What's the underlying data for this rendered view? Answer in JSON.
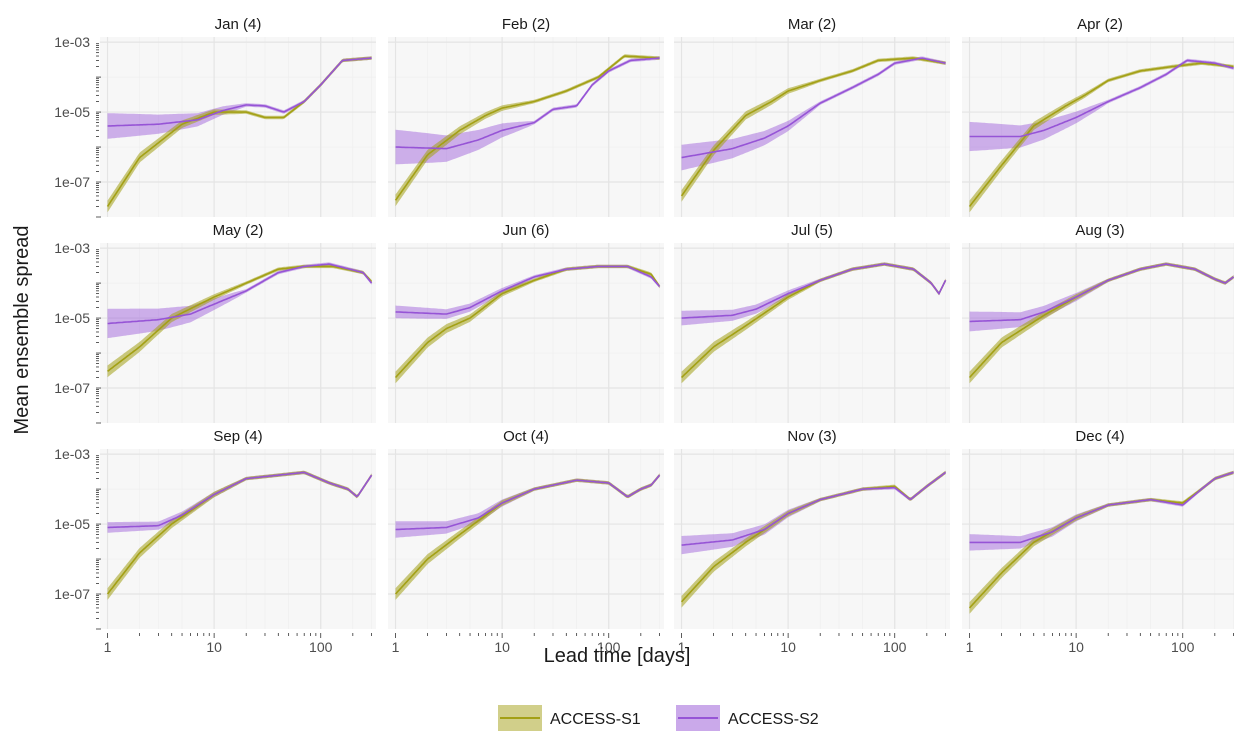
{
  "chart_data": {
    "type": "line",
    "ylabel": "Mean ensemble spread",
    "xlabel": "Lead time [days]",
    "x_scale": "log",
    "y_scale": "log",
    "xlim": [
      0.85,
      330
    ],
    "ylim": [
      1e-08,
      0.0014
    ],
    "x_ticks": [
      1,
      10,
      100
    ],
    "x_tick_labels": [
      "1",
      "10",
      "100"
    ],
    "y_ticks": [
      1e-07,
      1e-05,
      0.001
    ],
    "y_tick_labels": [
      "1e-07",
      "1e-05",
      "1e-03"
    ],
    "grid": true,
    "legend_position": "bottom",
    "colors": {
      "ACCESS-S1": "#a3a015",
      "ACCESS-S2": "#9654d6",
      "panel_bg": "#f7f7f7",
      "grid": "#e4e4e4"
    },
    "series_names": [
      "ACCESS-S1",
      "ACCESS-S2"
    ],
    "panels": [
      {
        "title": "Jan (4)",
        "s1": [
          [
            1,
            2e-08
          ],
          [
            2,
            5e-07
          ],
          [
            5,
            4.5e-06
          ],
          [
            10,
            1e-05
          ],
          [
            20,
            1e-05
          ],
          [
            30,
            7e-06
          ],
          [
            45,
            7e-06
          ],
          [
            70,
            2e-05
          ],
          [
            100,
            6e-05
          ],
          [
            160,
            0.0003
          ],
          [
            300,
            0.00035
          ]
        ],
        "s2": [
          [
            1,
            4e-06
          ],
          [
            3,
            4.5e-06
          ],
          [
            7,
            6e-06
          ],
          [
            12,
            1.1e-05
          ],
          [
            20,
            1.6e-05
          ],
          [
            30,
            1.5e-05
          ],
          [
            45,
            1e-05
          ],
          [
            70,
            2e-05
          ],
          [
            100,
            6e-05
          ],
          [
            160,
            0.0003
          ],
          [
            300,
            0.00035
          ]
        ],
        "s2_band": 2.2
      },
      {
        "title": "Feb (2)",
        "s1": [
          [
            1,
            3e-08
          ],
          [
            2,
            6e-07
          ],
          [
            4,
            3e-06
          ],
          [
            7,
            8e-06
          ],
          [
            10,
            1.3e-05
          ],
          [
            20,
            2e-05
          ],
          [
            40,
            4e-05
          ],
          [
            80,
            0.0001
          ],
          [
            140,
            0.0004
          ],
          [
            300,
            0.00035
          ]
        ],
        "s2": [
          [
            1,
            1e-06
          ],
          [
            3,
            9e-07
          ],
          [
            6,
            1.6e-06
          ],
          [
            10,
            3e-06
          ],
          [
            20,
            5e-06
          ],
          [
            30,
            1.2e-05
          ],
          [
            50,
            1.5e-05
          ],
          [
            70,
            6e-05
          ],
          [
            100,
            0.00015
          ],
          [
            160,
            0.0003
          ],
          [
            300,
            0.00035
          ]
        ],
        "s2_band": 3
      },
      {
        "title": "Mar (2)",
        "s1": [
          [
            1,
            4e-08
          ],
          [
            2,
            8e-07
          ],
          [
            4,
            8e-06
          ],
          [
            7,
            2e-05
          ],
          [
            10,
            4e-05
          ],
          [
            20,
            8e-05
          ],
          [
            40,
            0.00015
          ],
          [
            70,
            0.0003
          ],
          [
            150,
            0.00035
          ],
          [
            300,
            0.00025
          ]
        ],
        "s2": [
          [
            1,
            5e-07
          ],
          [
            3,
            9e-07
          ],
          [
            6,
            1.8e-06
          ],
          [
            10,
            4e-06
          ],
          [
            20,
            1.8e-05
          ],
          [
            40,
            5e-05
          ],
          [
            70,
            0.00012
          ],
          [
            100,
            0.00025
          ],
          [
            180,
            0.00035
          ],
          [
            300,
            0.00025
          ]
        ],
        "s2_band": 2.2
      },
      {
        "title": "Apr (2)",
        "s1": [
          [
            1,
            2e-08
          ],
          [
            2,
            3e-07
          ],
          [
            4,
            4e-06
          ],
          [
            8,
            1.5e-05
          ],
          [
            12,
            3e-05
          ],
          [
            20,
            8e-05
          ],
          [
            40,
            0.00015
          ],
          [
            80,
            0.0002
          ],
          [
            150,
            0.00025
          ],
          [
            300,
            0.0002
          ]
        ],
        "s2": [
          [
            1,
            2e-06
          ],
          [
            3,
            2e-06
          ],
          [
            5,
            3e-06
          ],
          [
            10,
            7e-06
          ],
          [
            20,
            2e-05
          ],
          [
            40,
            5e-05
          ],
          [
            70,
            0.00012
          ],
          [
            110,
            0.0003
          ],
          [
            200,
            0.00025
          ],
          [
            300,
            0.00018
          ]
        ],
        "s2_band": 2.5
      },
      {
        "title": "May (2)",
        "s1": [
          [
            1,
            3e-07
          ],
          [
            2,
            1.5e-06
          ],
          [
            4,
            1e-05
          ],
          [
            10,
            4e-05
          ],
          [
            20,
            0.0001
          ],
          [
            40,
            0.00025
          ],
          [
            70,
            0.0003
          ],
          [
            130,
            0.0003
          ],
          [
            250,
            0.0002
          ],
          [
            300,
            0.00011
          ]
        ],
        "s2": [
          [
            1,
            7e-06
          ],
          [
            3,
            9e-06
          ],
          [
            6,
            1.3e-05
          ],
          [
            10,
            2.5e-05
          ],
          [
            20,
            6e-05
          ],
          [
            40,
            0.0002
          ],
          [
            70,
            0.0003
          ],
          [
            120,
            0.00035
          ],
          [
            250,
            0.0002
          ],
          [
            300,
            0.0001
          ]
        ],
        "s2_band": 2.5
      },
      {
        "title": "Jun (6)",
        "s1": [
          [
            1,
            2e-07
          ],
          [
            2,
            2e-06
          ],
          [
            3,
            5e-06
          ],
          [
            5,
            1e-05
          ],
          [
            10,
            5e-05
          ],
          [
            20,
            0.00012
          ],
          [
            40,
            0.00025
          ],
          [
            80,
            0.0003
          ],
          [
            150,
            0.0003
          ],
          [
            250,
            0.00018
          ],
          [
            300,
            8e-05
          ]
        ],
        "s2": [
          [
            1,
            1.5e-05
          ],
          [
            3,
            1.3e-05
          ],
          [
            5,
            2e-05
          ],
          [
            10,
            6e-05
          ],
          [
            20,
            0.00015
          ],
          [
            40,
            0.00025
          ],
          [
            80,
            0.0003
          ],
          [
            150,
            0.0003
          ],
          [
            250,
            0.00015
          ],
          [
            300,
            8e-05
          ]
        ],
        "s2_band": 1.4
      },
      {
        "title": "Jul (5)",
        "s1": [
          [
            1,
            2e-07
          ],
          [
            2,
            1.5e-06
          ],
          [
            4,
            6e-06
          ],
          [
            10,
            4e-05
          ],
          [
            20,
            0.00012
          ],
          [
            40,
            0.00025
          ],
          [
            80,
            0.00035
          ],
          [
            150,
            0.00025
          ],
          [
            220,
            0.0001
          ],
          [
            260,
            5e-05
          ],
          [
            300,
            0.00012
          ]
        ],
        "s2": [
          [
            1,
            1e-05
          ],
          [
            3,
            1.2e-05
          ],
          [
            5,
            1.8e-05
          ],
          [
            10,
            5e-05
          ],
          [
            20,
            0.00012
          ],
          [
            40,
            0.00025
          ],
          [
            80,
            0.00035
          ],
          [
            150,
            0.00025
          ],
          [
            220,
            0.0001
          ],
          [
            260,
            5e-05
          ],
          [
            300,
            0.00012
          ]
        ],
        "s2_band": 1.5
      },
      {
        "title": "Aug (3)",
        "s1": [
          [
            1,
            2e-07
          ],
          [
            2,
            2e-06
          ],
          [
            5,
            1.2e-05
          ],
          [
            10,
            4e-05
          ],
          [
            20,
            0.00012
          ],
          [
            40,
            0.00025
          ],
          [
            70,
            0.00035
          ],
          [
            130,
            0.00025
          ],
          [
            200,
            0.00013
          ],
          [
            250,
            0.0001
          ],
          [
            300,
            0.00015
          ]
        ],
        "s2": [
          [
            1,
            8e-06
          ],
          [
            3,
            9e-06
          ],
          [
            5,
            1.5e-05
          ],
          [
            10,
            4e-05
          ],
          [
            20,
            0.00012
          ],
          [
            40,
            0.00025
          ],
          [
            70,
            0.00035
          ],
          [
            130,
            0.00025
          ],
          [
            200,
            0.00013
          ],
          [
            250,
            0.0001
          ],
          [
            300,
            0.00015
          ]
        ],
        "s2_band": 1.8
      },
      {
        "title": "Sep (4)",
        "s1": [
          [
            1,
            1e-07
          ],
          [
            2,
            1.5e-06
          ],
          [
            4,
            1e-05
          ],
          [
            10,
            7e-05
          ],
          [
            20,
            0.0002
          ],
          [
            40,
            0.00025
          ],
          [
            70,
            0.0003
          ],
          [
            120,
            0.00015
          ],
          [
            180,
            0.0001
          ],
          [
            220,
            6e-05
          ],
          [
            300,
            0.00025
          ]
        ],
        "s2": [
          [
            1,
            8e-06
          ],
          [
            3,
            9e-06
          ],
          [
            5,
            1.8e-05
          ],
          [
            10,
            7e-05
          ],
          [
            20,
            0.0002
          ],
          [
            40,
            0.00025
          ],
          [
            70,
            0.0003
          ],
          [
            120,
            0.00015
          ],
          [
            180,
            0.0001
          ],
          [
            220,
            6e-05
          ],
          [
            300,
            0.00025
          ]
        ],
        "s2_band": 1.3
      },
      {
        "title": "Oct (4)",
        "s1": [
          [
            1,
            1e-07
          ],
          [
            2,
            1e-06
          ],
          [
            4,
            5e-06
          ],
          [
            10,
            4e-05
          ],
          [
            20,
            0.0001
          ],
          [
            50,
            0.00018
          ],
          [
            100,
            0.00015
          ],
          [
            150,
            6e-05
          ],
          [
            200,
            0.0001
          ],
          [
            250,
            0.00013
          ],
          [
            300,
            0.00025
          ]
        ],
        "s2": [
          [
            1,
            7e-06
          ],
          [
            3,
            8e-06
          ],
          [
            6,
            1.5e-05
          ],
          [
            10,
            4e-05
          ],
          [
            20,
            0.0001
          ],
          [
            50,
            0.00018
          ],
          [
            100,
            0.00015
          ],
          [
            150,
            6e-05
          ],
          [
            200,
            0.0001
          ],
          [
            250,
            0.00013
          ],
          [
            300,
            0.00025
          ]
        ],
        "s2_band": 1.6
      },
      {
        "title": "Nov (3)",
        "s1": [
          [
            1,
            6e-08
          ],
          [
            2,
            6e-07
          ],
          [
            4,
            3e-06
          ],
          [
            10,
            2e-05
          ],
          [
            20,
            5e-05
          ],
          [
            50,
            0.0001
          ],
          [
            100,
            0.00012
          ],
          [
            140,
            5e-05
          ],
          [
            200,
            0.00012
          ],
          [
            300,
            0.0003
          ]
        ],
        "s2": [
          [
            1,
            2.5e-06
          ],
          [
            3,
            3.5e-06
          ],
          [
            6,
            7e-06
          ],
          [
            10,
            2e-05
          ],
          [
            20,
            5e-05
          ],
          [
            50,
            0.0001
          ],
          [
            100,
            0.00011
          ],
          [
            140,
            5e-05
          ],
          [
            200,
            0.00012
          ],
          [
            300,
            0.0003
          ]
        ],
        "s2_band": 1.7
      },
      {
        "title": "Dec (4)",
        "s1": [
          [
            1,
            4e-08
          ],
          [
            2,
            4e-07
          ],
          [
            4,
            3e-06
          ],
          [
            10,
            1.5e-05
          ],
          [
            20,
            3.5e-05
          ],
          [
            50,
            5e-05
          ],
          [
            100,
            4e-05
          ],
          [
            150,
            0.0001
          ],
          [
            200,
            0.0002
          ],
          [
            300,
            0.0003
          ]
        ],
        "s2": [
          [
            1,
            3e-06
          ],
          [
            3,
            3e-06
          ],
          [
            6,
            6e-06
          ],
          [
            10,
            1.5e-05
          ],
          [
            20,
            3.5e-05
          ],
          [
            50,
            5e-05
          ],
          [
            100,
            3.5e-05
          ],
          [
            150,
            0.0001
          ],
          [
            200,
            0.0002
          ],
          [
            300,
            0.0003
          ]
        ],
        "s2_band": 1.6
      }
    ]
  }
}
